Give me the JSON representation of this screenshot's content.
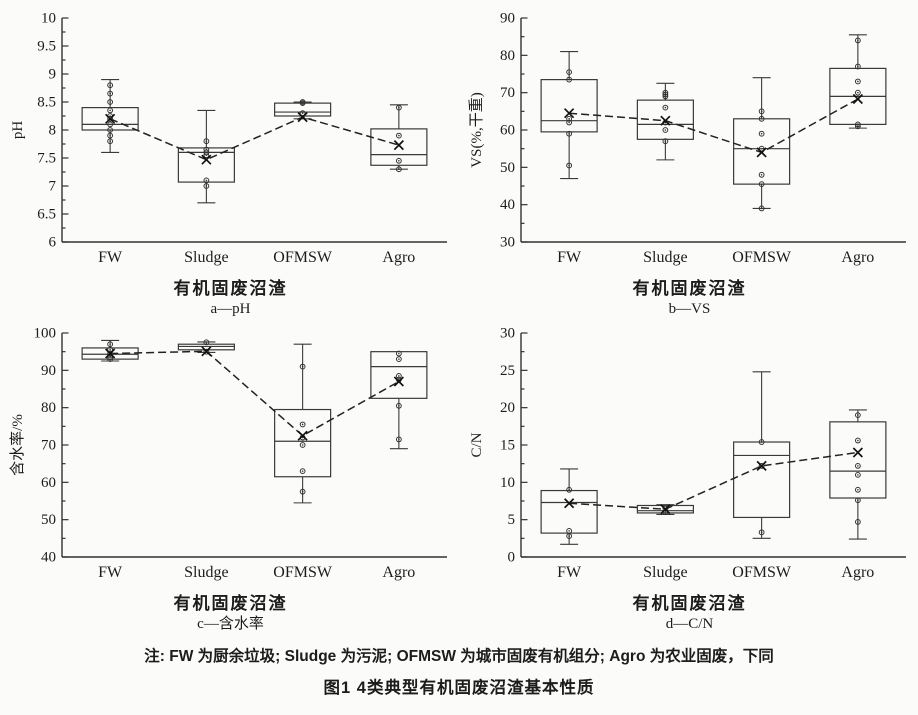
{
  "figure": {
    "note": "注: FW 为厨余垃圾; Sludge 为污泥; OFMSW 为城市固废有机组分; Agro 为农业固废，下同",
    "title": "图1  4类典型有机固废沼渣基本性质"
  },
  "chart_data": [
    {
      "type": "box",
      "panel_label": "a—pH",
      "xlabel": "有机固废沼渣",
      "ylabel": "pH",
      "ylim": [
        6,
        10
      ],
      "ytick_step": 0.5,
      "yminor_step": 0.25,
      "categories": [
        "FW",
        "Sludge",
        "OFMSW",
        "Agro"
      ],
      "mean_line": true,
      "series": [
        {
          "name": "FW",
          "low": 7.6,
          "q1": 8.0,
          "median": 8.1,
          "q3": 8.4,
          "high": 8.9,
          "mean": 8.2,
          "points": [
            8.8,
            8.65,
            8.5,
            8.35,
            8.25,
            8.2,
            8.1,
            8.0,
            7.9,
            7.8
          ]
        },
        {
          "name": "Sludge",
          "low": 6.7,
          "q1": 7.07,
          "median": 7.6,
          "q3": 7.68,
          "high": 8.35,
          "mean": 7.47,
          "points": [
            7.8,
            7.65,
            7.6,
            7.55,
            7.1,
            7.0
          ]
        },
        {
          "name": "OFMSW",
          "low": 8.2,
          "q1": 8.25,
          "median": 8.32,
          "q3": 8.48,
          "high": 8.5,
          "mean": 8.23,
          "points": [
            8.5,
            8.48,
            8.3
          ]
        },
        {
          "name": "Agro",
          "low": 7.3,
          "q1": 7.37,
          "median": 7.56,
          "q3": 8.02,
          "high": 8.45,
          "mean": 7.73,
          "points": [
            8.4,
            7.9,
            7.45,
            7.3
          ]
        }
      ]
    },
    {
      "type": "box",
      "panel_label": "b—VS",
      "xlabel": "有机固废沼渣",
      "ylabel": "VS(%,干重)",
      "ylim": [
        30,
        90
      ],
      "ytick_step": 10,
      "yminor_step": 5,
      "categories": [
        "FW",
        "Sludge",
        "OFMSW",
        "Agro"
      ],
      "mean_line": true,
      "series": [
        {
          "name": "FW",
          "low": 47,
          "q1": 59.5,
          "median": 62.5,
          "q3": 73.5,
          "high": 81,
          "mean": 64.5,
          "points": [
            75.5,
            73.5,
            63,
            62,
            59,
            50.5
          ]
        },
        {
          "name": "Sludge",
          "low": 52,
          "q1": 57.5,
          "median": 61.5,
          "q3": 68,
          "high": 72.5,
          "mean": 62.5,
          "points": [
            70,
            69.5,
            69,
            66,
            62,
            60,
            57
          ]
        },
        {
          "name": "OFMSW",
          "low": 39,
          "q1": 45.5,
          "median": 55,
          "q3": 63,
          "high": 74,
          "mean": 54,
          "points": [
            65,
            63,
            59,
            55,
            48,
            45.5,
            39
          ]
        },
        {
          "name": "Agro",
          "low": 60.5,
          "q1": 61.5,
          "median": 69,
          "q3": 76.5,
          "high": 85.5,
          "mean": 68.3,
          "points": [
            84,
            77,
            73,
            70,
            61.5,
            61
          ]
        }
      ]
    },
    {
      "type": "box",
      "panel_label": "c—含水率",
      "xlabel": "有机固废沼渣",
      "ylabel": "含水率/%",
      "ylim": [
        40,
        100
      ],
      "ytick_step": 10,
      "yminor_step": 5,
      "categories": [
        "FW",
        "Sludge",
        "OFMSW",
        "Agro"
      ],
      "mean_line": true,
      "series": [
        {
          "name": "FW",
          "low": 92.5,
          "q1": 93,
          "median": 94.3,
          "q3": 96,
          "high": 98,
          "mean": 94.5,
          "points": [
            97,
            95.5,
            94.5,
            93.5,
            93
          ]
        },
        {
          "name": "Sludge",
          "low": 94.8,
          "q1": 95.5,
          "median": 96.4,
          "q3": 97,
          "high": 97.6,
          "mean": 95.1,
          "points": [
            97.5,
            95
          ]
        },
        {
          "name": "OFMSW",
          "low": 54.5,
          "q1": 61.5,
          "median": 71,
          "q3": 79.5,
          "high": 97,
          "mean": 72.5,
          "points": [
            91,
            75.5,
            72,
            70,
            63,
            57.5
          ]
        },
        {
          "name": "Agro",
          "low": 69,
          "q1": 82.5,
          "median": 91,
          "q3": 95,
          "high": 95,
          "mean": 87,
          "points": [
            94.5,
            93,
            88.5,
            87.5,
            80.5,
            71.5
          ]
        }
      ]
    },
    {
      "type": "box",
      "panel_label": "d—C/N",
      "xlabel": "有机固废沼渣",
      "ylabel": "C/N",
      "ylim": [
        0,
        30
      ],
      "ytick_step": 5,
      "yminor_step": 2.5,
      "categories": [
        "FW",
        "Sludge",
        "OFMSW",
        "Agro"
      ],
      "mean_line": true,
      "series": [
        {
          "name": "FW",
          "low": 1.7,
          "q1": 3.2,
          "median": 7.3,
          "q3": 8.9,
          "high": 11.8,
          "mean": 7.2,
          "points": [
            9,
            3.5,
            2.8
          ]
        },
        {
          "name": "Sludge",
          "low": 5.7,
          "q1": 5.9,
          "median": 6.2,
          "q3": 6.9,
          "high": 7.0,
          "mean": 6.4,
          "points": [
            6.5,
            6.0
          ]
        },
        {
          "name": "OFMSW",
          "low": 2.5,
          "q1": 5.3,
          "median": 13.6,
          "q3": 15.4,
          "high": 24.8,
          "mean": 12.2,
          "points": [
            15.4,
            12.2,
            3.3
          ]
        },
        {
          "name": "Agro",
          "low": 2.4,
          "q1": 7.9,
          "median": 11.5,
          "q3": 18.1,
          "high": 19.7,
          "mean": 14.0,
          "points": [
            19,
            15.6,
            12.2,
            11,
            9,
            7.6,
            4.7
          ]
        }
      ]
    }
  ]
}
